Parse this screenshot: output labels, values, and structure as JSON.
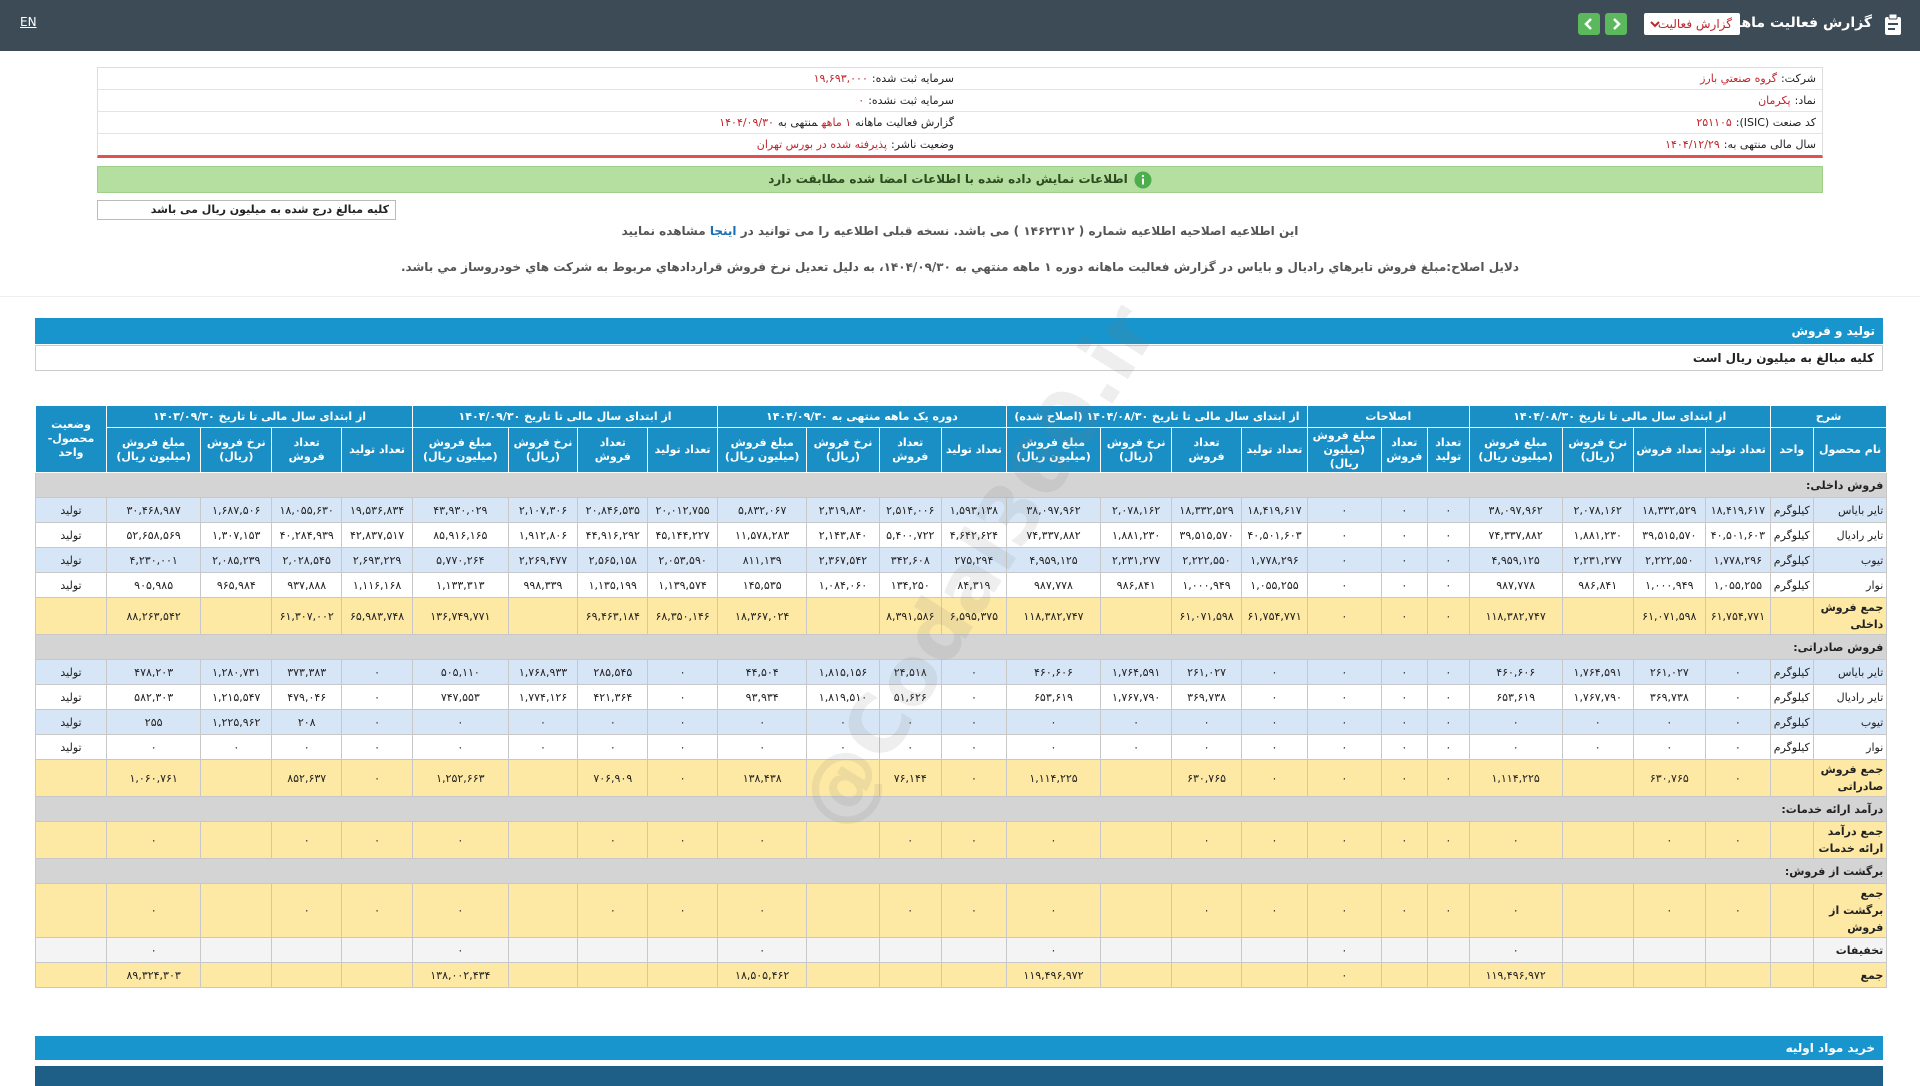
{
  "header": {
    "title": "گزارش فعالیت ماهانه",
    "dropdown": "گزارش فعالیت",
    "language": "EN"
  },
  "info": {
    "rows": [
      [
        {
          "label": "شرکت:",
          "value": "گروه صنعتي بارز"
        },
        {
          "label": "سرمایه ثبت شده:",
          "value": "۱۹,۶۹۳,۰۰۰"
        }
      ],
      [
        {
          "label": "نماد:",
          "value": "پکرمان"
        },
        {
          "label": "سرمایه ثبت نشده:",
          "value": "۰"
        }
      ],
      [
        {
          "label": "کد صنعت (ISIC):",
          "value": "۲۵۱۱۰۵"
        },
        {
          "label": "گزارش فعالیت ماهانه",
          "value": [
            "۱ ماهه",
            "منتهی به",
            "۱۴۰۴/۰۹/۳۰"
          ]
        }
      ],
      [
        {
          "label": "سال مالی منتهی به:",
          "value": "۱۴۰۴/۱۲/۲۹"
        },
        {
          "label": "وضعیت ناشر:",
          "value": "پذیرفته شده در بورس تهران"
        }
      ]
    ]
  },
  "banner": "اطلاعات نمایش داده شده با اطلاعات امضا شده مطابقت دارد",
  "units_note": "کلیه مبالغ درج شده به میلیون ریال می باشد",
  "notice": {
    "before": "این اطلاعیه اصلاحیه اطلاعیه شماره ( ۱۴۶۲۳۱۲ ) می باشد. نسخه قبلی اطلاعیه را می توانید در",
    "link": "اینجا",
    "after": "مشاهده نمایید"
  },
  "reasons": "دلایل اصلاح:مبلغ فروش تايرهاي راديال و باياس در گزارش فعاليت ماهانه دوره ۱ ماهه منتهي به ۱۴۰۴/۰۹/۳۰، به دليل تعديل نرخ فروش قراردادهاي مربوط به شركت هاي خودروساز مي باشد.",
  "watermark": "@Codal360.ir",
  "section": {
    "title": "تولید و فروش",
    "subtitle": "کلیه مبالغ به میلیون ریال است"
  },
  "table": {
    "groups": [
      {
        "label": "شرح",
        "columns": [
          "نام محصول",
          "واحد"
        ]
      },
      {
        "label": "از ابتدای سال مالی تا تاریخ ۱۴۰۴/۰۸/۳۰",
        "columns": [
          "تعداد تولید",
          "تعداد فروش",
          "نرخ فروش (ریال)",
          "مبلغ فروش (میلیون ریال)"
        ]
      },
      {
        "label": "اصلاحات",
        "columns": [
          "تعداد تولید",
          "تعداد فروش",
          "مبلغ فروش (میلیون ریال)"
        ]
      },
      {
        "label": "از ابتدای سال مالی تا تاریخ ۱۴۰۴/۰۸/۳۰ (اصلاح شده)",
        "columns": [
          "تعداد تولید",
          "تعداد فروش",
          "نرخ فروش (ریال)",
          "مبلغ فروش (میلیون ریال)"
        ]
      },
      {
        "label": "دوره یک ماهه منتهی به ۱۴۰۴/۰۹/۳۰",
        "columns": [
          "تعداد تولید",
          "تعداد فروش",
          "نرخ فروش (ریال)",
          "مبلغ فروش (میلیون ریال)"
        ]
      },
      {
        "label": "از ابتدای سال مالی تا تاریخ ۱۴۰۴/۰۹/۳۰",
        "columns": [
          "تعداد تولید",
          "تعداد فروش",
          "نرخ فروش (ریال)",
          "مبلغ فروش (میلیون ریال)"
        ]
      },
      {
        "label": "از ابتدای سال مالی تا تاریخ ۱۴۰۳/۰۹/۳۰",
        "columns": [
          "تعداد تولید",
          "تعداد فروش",
          "نرخ فروش (ریال)",
          "مبلغ فروش (میلیون ریال)"
        ]
      },
      {
        "label": "وضعیت محصول-واحد"
      }
    ],
    "rows": [
      {
        "heading": "فروش داخلی:"
      },
      {
        "cells": [
          "تایر باياس",
          "كيلوگرم",
          "۱۸,۴۱۹,۶۱۷",
          "۱۸,۳۳۲,۵۲۹",
          "۲,۰۷۸,۱۶۲",
          "۳۸,۰۹۷,۹۶۲",
          "۰",
          "۰",
          "۰",
          "۱۸,۴۱۹,۶۱۷",
          "۱۸,۳۳۲,۵۲۹",
          "۲,۰۷۸,۱۶۲",
          "۳۸,۰۹۷,۹۶۲",
          "۱,۵۹۳,۱۳۸",
          "۲,۵۱۴,۰۰۶",
          "۲,۳۱۹,۸۳۰",
          "۵,۸۳۲,۰۶۷",
          "۲۰,۰۱۲,۷۵۵",
          "۲۰,۸۴۶,۵۳۵",
          "۲,۱۰۷,۳۰۶",
          "۴۳,۹۳۰,۰۲۹",
          "۱۹,۵۳۶,۸۳۴",
          "۱۸,۰۵۵,۶۳۰",
          "۱,۶۸۷,۵۰۶",
          "۳۰,۴۶۸,۹۸۷",
          "تولید"
        ]
      },
      {
        "cells": [
          "تایر رادیال",
          "كيلوگرم",
          "۴۰,۵۰۱,۶۰۳",
          "۳۹,۵۱۵,۵۷۰",
          "۱,۸۸۱,۲۳۰",
          "۷۴,۳۳۷,۸۸۲",
          "۰",
          "۰",
          "۰",
          "۴۰,۵۰۱,۶۰۳",
          "۳۹,۵۱۵,۵۷۰",
          "۱,۸۸۱,۲۳۰",
          "۷۴,۳۳۷,۸۸۲",
          "۴,۶۴۲,۶۲۴",
          "۵,۴۰۰,۷۲۲",
          "۲,۱۴۳,۸۴۰",
          "۱۱,۵۷۸,۲۸۳",
          "۴۵,۱۴۴,۲۲۷",
          "۴۴,۹۱۶,۲۹۲",
          "۱,۹۱۲,۸۰۶",
          "۸۵,۹۱۶,۱۶۵",
          "۴۲,۸۳۷,۵۱۷",
          "۴۰,۲۸۴,۹۳۹",
          "۱,۳۰۷,۱۵۳",
          "۵۲,۶۵۸,۵۶۹",
          "تولید"
        ]
      },
      {
        "cells": [
          "تیوب",
          "كيلوگرم",
          "۱,۷۷۸,۲۹۶",
          "۲,۲۲۲,۵۵۰",
          "۲,۲۳۱,۲۷۷",
          "۴,۹۵۹,۱۲۵",
          "۰",
          "۰",
          "۰",
          "۱,۷۷۸,۲۹۶",
          "۲,۲۲۲,۵۵۰",
          "۲,۲۳۱,۲۷۷",
          "۴,۹۵۹,۱۲۵",
          "۲۷۵,۲۹۴",
          "۳۴۲,۶۰۸",
          "۲,۳۶۷,۵۴۲",
          "۸۱۱,۱۳۹",
          "۲,۰۵۳,۵۹۰",
          "۲,۵۶۵,۱۵۸",
          "۲,۲۶۹,۴۷۷",
          "۵,۷۷۰,۲۶۴",
          "۲,۶۹۳,۲۲۹",
          "۲,۰۲۸,۵۴۵",
          "۲,۰۸۵,۲۳۹",
          "۴,۲۳۰,۰۰۱",
          "تولید"
        ]
      },
      {
        "cells": [
          "نوار",
          "كيلوگرم",
          "۱,۰۵۵,۲۵۵",
          "۱,۰۰۰,۹۴۹",
          "۹۸۶,۸۴۱",
          "۹۸۷,۷۷۸",
          "۰",
          "۰",
          "۰",
          "۱,۰۵۵,۲۵۵",
          "۱,۰۰۰,۹۴۹",
          "۹۸۶,۸۴۱",
          "۹۸۷,۷۷۸",
          "۸۴,۳۱۹",
          "۱۳۴,۲۵۰",
          "۱,۰۸۴,۰۶۰",
          "۱۴۵,۵۳۵",
          "۱,۱۳۹,۵۷۴",
          "۱,۱۳۵,۱۹۹",
          "۹۹۸,۳۳۹",
          "۱,۱۳۳,۳۱۳",
          "۱,۱۱۶,۱۶۸",
          "۹۳۷,۸۸۸",
          "۹۶۵,۹۸۴",
          "۹۰۵,۹۸۵",
          "تولید"
        ]
      },
      {
        "cells": [
          "جمع فروش داخلی",
          null,
          "۶۱,۷۵۴,۷۷۱",
          "۶۱,۰۷۱,۵۹۸",
          null,
          "۱۱۸,۳۸۲,۷۴۷",
          "۰",
          "۰",
          "۰",
          "۶۱,۷۵۴,۷۷۱",
          "۶۱,۰۷۱,۵۹۸",
          null,
          "۱۱۸,۳۸۲,۷۴۷",
          "۶,۵۹۵,۳۷۵",
          "۸,۳۹۱,۵۸۶",
          null,
          "۱۸,۳۶۷,۰۲۴",
          "۶۸,۳۵۰,۱۴۶",
          "۶۹,۴۶۳,۱۸۴",
          null,
          "۱۳۶,۷۴۹,۷۷۱",
          "۶۵,۹۸۳,۷۴۸",
          "۶۱,۳۰۷,۰۰۲",
          null,
          "۸۸,۲۶۳,۵۴۲",
          null
        ]
      },
      {
        "heading": "فروش صادراتی:"
      },
      {
        "cells": [
          "تایر باياس",
          "كيلوگرم",
          "۰",
          "۲۶۱,۰۲۷",
          "۱,۷۶۴,۵۹۱",
          "۴۶۰,۶۰۶",
          "۰",
          "۰",
          "۰",
          "۰",
          "۲۶۱,۰۲۷",
          "۱,۷۶۴,۵۹۱",
          "۴۶۰,۶۰۶",
          "۰",
          "۲۴,۵۱۸",
          "۱,۸۱۵,۱۵۶",
          "۴۴,۵۰۴",
          "۰",
          "۲۸۵,۵۴۵",
          "۱,۷۶۸,۹۳۳",
          "۵۰۵,۱۱۰",
          "۰",
          "۳۷۳,۳۸۳",
          "۱,۲۸۰,۷۳۱",
          "۴۷۸,۲۰۳",
          "تولید"
        ]
      },
      {
        "cells": [
          "تایر رادیال",
          "كيلوگرم",
          "۰",
          "۳۶۹,۷۳۸",
          "۱,۷۶۷,۷۹۰",
          "۶۵۳,۶۱۹",
          "۰",
          "۰",
          "۰",
          "۰",
          "۳۶۹,۷۳۸",
          "۱,۷۶۷,۷۹۰",
          "۶۵۳,۶۱۹",
          "۰",
          "۵۱,۶۲۶",
          "۱,۸۱۹,۵۱۰",
          "۹۳,۹۳۴",
          "۰",
          "۴۲۱,۳۶۴",
          "۱,۷۷۴,۱۲۶",
          "۷۴۷,۵۵۳",
          "۰",
          "۴۷۹,۰۴۶",
          "۱,۲۱۵,۵۴۷",
          "۵۸۲,۳۰۳",
          "تولید"
        ]
      },
      {
        "cells": [
          "تیوب",
          "كيلوگرم",
          "۰",
          "۰",
          "۰",
          "۰",
          "۰",
          "۰",
          "۰",
          "۰",
          "۰",
          "۰",
          "۰",
          "۰",
          "۰",
          "۰",
          "۰",
          "۰",
          "۰",
          "۰",
          "۰",
          "۰",
          "۲۰۸",
          "۱,۲۲۵,۹۶۲",
          "۲۵۵",
          "تولید"
        ]
      },
      {
        "cells": [
          "نوار",
          "كيلوگرم",
          "۰",
          "۰",
          "۰",
          "۰",
          "۰",
          "۰",
          "۰",
          "۰",
          "۰",
          "۰",
          "۰",
          "۰",
          "۰",
          "۰",
          "۰",
          "۰",
          "۰",
          "۰",
          "۰",
          "۰",
          "۰",
          "۰",
          "۰",
          "تولید"
        ]
      },
      {
        "cells": [
          "جمع فروش صادراتی",
          null,
          "۰",
          "۶۳۰,۷۶۵",
          null,
          "۱,۱۱۴,۲۲۵",
          "۰",
          "۰",
          "۰",
          "۰",
          "۶۳۰,۷۶۵",
          null,
          "۱,۱۱۴,۲۲۵",
          "۰",
          "۷۶,۱۴۴",
          null,
          "۱۳۸,۴۳۸",
          "۰",
          "۷۰۶,۹۰۹",
          null,
          "۱,۲۵۲,۶۶۳",
          "۰",
          "۸۵۲,۶۳۷",
          null,
          "۱,۰۶۰,۷۶۱",
          null
        ]
      },
      {
        "heading": "درآمد ارائه خدمات:"
      },
      {
        "cells": [
          "جمع درآمد ارائه خدمات",
          null,
          "۰",
          "۰",
          null,
          "۰",
          "۰",
          "۰",
          "۰",
          "۰",
          "۰",
          null,
          "۰",
          "۰",
          "۰",
          null,
          "۰",
          "۰",
          "۰",
          null,
          "۰",
          "۰",
          "۰",
          null,
          "۰",
          null
        ]
      },
      {
        "heading": "برگشت از فروش:"
      },
      {
        "cells": [
          "جمع برگشت از فروش",
          null,
          "۰",
          "۰",
          null,
          "۰",
          "۰",
          "۰",
          "۰",
          "۰",
          "۰",
          null,
          "۰",
          "۰",
          "۰",
          null,
          "۰",
          "۰",
          "۰",
          null,
          "۰",
          "۰",
          "۰",
          null,
          "۰",
          null
        ]
      },
      {
        "cells": [
          "تخفیفات",
          null,
          null,
          null,
          null,
          "۰",
          null,
          null,
          "۰",
          null,
          null,
          null,
          "۰",
          null,
          null,
          null,
          "۰",
          null,
          null,
          null,
          "۰",
          null,
          null,
          null,
          "۰",
          null
        ]
      },
      {
        "cells": [
          "جمع",
          null,
          null,
          null,
          null,
          "۱۱۹,۴۹۶,۹۷۲",
          null,
          null,
          "۰",
          null,
          null,
          null,
          "۱۱۹,۴۹۶,۹۷۲",
          null,
          null,
          null,
          "۱۸,۵۰۵,۴۶۲",
          null,
          null,
          null,
          "۱۳۸,۰۰۲,۴۳۴",
          null,
          null,
          null,
          "۸۹,۳۲۴,۳۰۳",
          null
        ]
      }
    ]
  },
  "next_section": {
    "title": "خرید مواد اولیه"
  }
}
